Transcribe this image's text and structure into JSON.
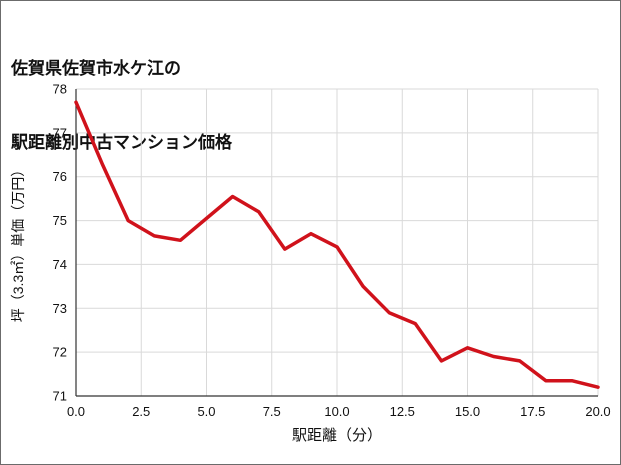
{
  "chart_data": {
    "type": "line",
    "title": "佐賀県佐賀市水ケ江の 駅距離別中古マンション価格",
    "title_lines": [
      "佐賀県佐賀市水ケ江の",
      "駅距離別中古マンション価格"
    ],
    "xlabel": "駅距離（分）",
    "ylabel": "坪（3.3㎡）単価（万円）",
    "x": [
      0,
      1,
      2,
      3,
      4,
      5,
      6,
      7,
      8,
      9,
      10,
      11,
      12,
      13,
      14,
      15,
      16,
      17,
      18,
      19,
      20
    ],
    "y": [
      77.7,
      76.3,
      75.0,
      74.65,
      74.55,
      75.05,
      75.55,
      75.2,
      74.35,
      74.7,
      74.4,
      73.5,
      72.9,
      72.65,
      71.8,
      72.1,
      71.9,
      71.8,
      71.35,
      71.35,
      71.2
    ],
    "xlim": [
      0,
      20
    ],
    "ylim": [
      71,
      78
    ],
    "xticks": [
      0,
      2.5,
      5,
      7.5,
      10,
      12.5,
      15,
      17.5,
      20
    ],
    "xtick_labels": [
      "0.0",
      "2.5",
      "5.0",
      "7.5",
      "10.0",
      "12.5",
      "15.0",
      "17.5",
      "20.0"
    ],
    "yticks": [
      71,
      72,
      73,
      74,
      75,
      76,
      77,
      78
    ],
    "ytick_labels": [
      "71",
      "72",
      "73",
      "74",
      "75",
      "76",
      "77",
      "78"
    ],
    "line_color": "#d0121b",
    "grid_color": "#d9d9d9",
    "axis_color": "#333333",
    "text_color": "#111111",
    "grid": true,
    "legend": "none"
  }
}
